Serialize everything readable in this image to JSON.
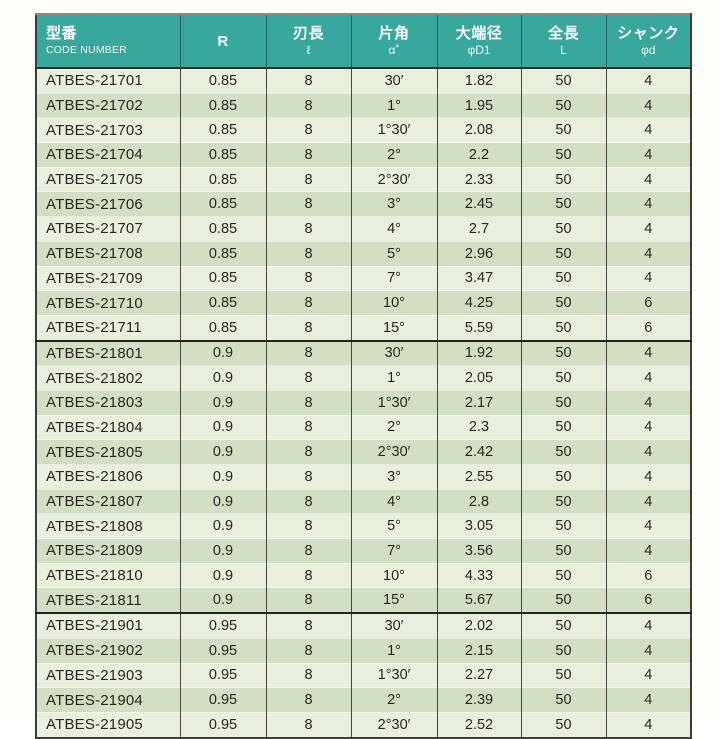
{
  "colors": {
    "header_bg": "#38a79d",
    "header_text": "#ffffff",
    "row_light": "#e9efdd",
    "row_dark": "#d3dfc3",
    "border_dark": "#3c3c38",
    "body_text": "#26261f"
  },
  "table": {
    "columns": [
      {
        "label": "型番",
        "sublabel": "CODE NUMBER"
      },
      {
        "label": "R",
        "sublabel": ""
      },
      {
        "label": "刃長",
        "sublabel": "ℓ"
      },
      {
        "label": "片角",
        "sublabel": "α˚"
      },
      {
        "label": "大端径",
        "sublabel": "φD1"
      },
      {
        "label": "全長",
        "sublabel": "L"
      },
      {
        "label": "シャンク",
        "sublabel": "φd"
      }
    ],
    "groups": [
      {
        "rows": [
          {
            "code": "ATBES-21701",
            "r": "0.85",
            "l": "8",
            "angle": "30′",
            "d1": "1.82",
            "len": "50",
            "shank": "4"
          },
          {
            "code": "ATBES-21702",
            "r": "0.85",
            "l": "8",
            "angle": "1°",
            "d1": "1.95",
            "len": "50",
            "shank": "4"
          },
          {
            "code": "ATBES-21703",
            "r": "0.85",
            "l": "8",
            "angle": "1°30′",
            "d1": "2.08",
            "len": "50",
            "shank": "4"
          },
          {
            "code": "ATBES-21704",
            "r": "0.85",
            "l": "8",
            "angle": "2°",
            "d1": "2.2",
            "len": "50",
            "shank": "4"
          },
          {
            "code": "ATBES-21705",
            "r": "0.85",
            "l": "8",
            "angle": "2°30′",
            "d1": "2.33",
            "len": "50",
            "shank": "4"
          },
          {
            "code": "ATBES-21706",
            "r": "0.85",
            "l": "8",
            "angle": "3°",
            "d1": "2.45",
            "len": "50",
            "shank": "4"
          },
          {
            "code": "ATBES-21707",
            "r": "0.85",
            "l": "8",
            "angle": "4°",
            "d1": "2.7",
            "len": "50",
            "shank": "4"
          },
          {
            "code": "ATBES-21708",
            "r": "0.85",
            "l": "8",
            "angle": "5°",
            "d1": "2.96",
            "len": "50",
            "shank": "4"
          },
          {
            "code": "ATBES-21709",
            "r": "0.85",
            "l": "8",
            "angle": "7°",
            "d1": "3.47",
            "len": "50",
            "shank": "4"
          },
          {
            "code": "ATBES-21710",
            "r": "0.85",
            "l": "8",
            "angle": "10°",
            "d1": "4.25",
            "len": "50",
            "shank": "6"
          },
          {
            "code": "ATBES-21711",
            "r": "0.85",
            "l": "8",
            "angle": "15°",
            "d1": "5.59",
            "len": "50",
            "shank": "6"
          }
        ]
      },
      {
        "rows": [
          {
            "code": "ATBES-21801",
            "r": "0.9",
            "l": "8",
            "angle": "30′",
            "d1": "1.92",
            "len": "50",
            "shank": "4"
          },
          {
            "code": "ATBES-21802",
            "r": "0.9",
            "l": "8",
            "angle": "1°",
            "d1": "2.05",
            "len": "50",
            "shank": "4"
          },
          {
            "code": "ATBES-21803",
            "r": "0.9",
            "l": "8",
            "angle": "1°30′",
            "d1": "2.17",
            "len": "50",
            "shank": "4"
          },
          {
            "code": "ATBES-21804",
            "r": "0.9",
            "l": "8",
            "angle": "2°",
            "d1": "2.3",
            "len": "50",
            "shank": "4"
          },
          {
            "code": "ATBES-21805",
            "r": "0.9",
            "l": "8",
            "angle": "2°30′",
            "d1": "2.42",
            "len": "50",
            "shank": "4"
          },
          {
            "code": "ATBES-21806",
            "r": "0.9",
            "l": "8",
            "angle": "3°",
            "d1": "2.55",
            "len": "50",
            "shank": "4"
          },
          {
            "code": "ATBES-21807",
            "r": "0.9",
            "l": "8",
            "angle": "4°",
            "d1": "2.8",
            "len": "50",
            "shank": "4"
          },
          {
            "code": "ATBES-21808",
            "r": "0.9",
            "l": "8",
            "angle": "5°",
            "d1": "3.05",
            "len": "50",
            "shank": "4"
          },
          {
            "code": "ATBES-21809",
            "r": "0.9",
            "l": "8",
            "angle": "7°",
            "d1": "3.56",
            "len": "50",
            "shank": "4"
          },
          {
            "code": "ATBES-21810",
            "r": "0.9",
            "l": "8",
            "angle": "10°",
            "d1": "4.33",
            "len": "50",
            "shank": "6"
          },
          {
            "code": "ATBES-21811",
            "r": "0.9",
            "l": "8",
            "angle": "15°",
            "d1": "5.67",
            "len": "50",
            "shank": "6"
          }
        ]
      },
      {
        "rows": [
          {
            "code": "ATBES-21901",
            "r": "0.95",
            "l": "8",
            "angle": "30′",
            "d1": "2.02",
            "len": "50",
            "shank": "4"
          },
          {
            "code": "ATBES-21902",
            "r": "0.95",
            "l": "8",
            "angle": "1°",
            "d1": "2.15",
            "len": "50",
            "shank": "4"
          },
          {
            "code": "ATBES-21903",
            "r": "0.95",
            "l": "8",
            "angle": "1°30′",
            "d1": "2.27",
            "len": "50",
            "shank": "4"
          },
          {
            "code": "ATBES-21904",
            "r": "0.95",
            "l": "8",
            "angle": "2°",
            "d1": "2.39",
            "len": "50",
            "shank": "4"
          },
          {
            "code": "ATBES-21905",
            "r": "0.95",
            "l": "8",
            "angle": "2°30′",
            "d1": "2.52",
            "len": "50",
            "shank": "4"
          }
        ]
      }
    ]
  }
}
